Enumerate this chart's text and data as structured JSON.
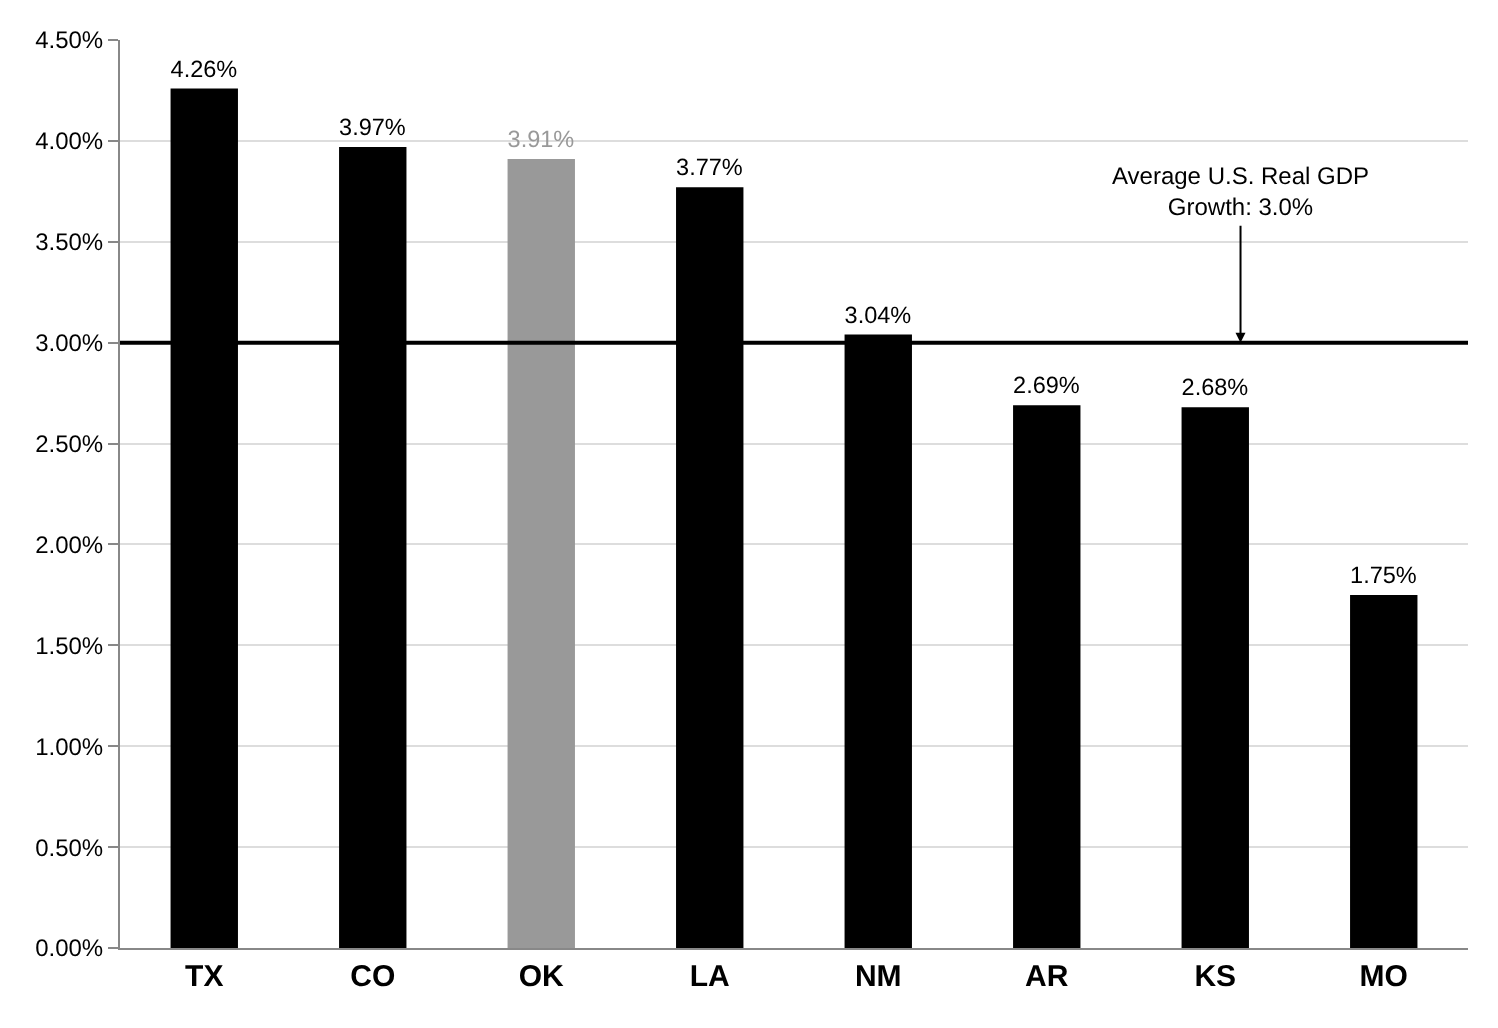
{
  "chart_data": {
    "type": "bar",
    "categories": [
      "TX",
      "CO",
      "OK",
      "LA",
      "NM",
      "AR",
      "KS",
      "MO"
    ],
    "values": [
      4.26,
      3.97,
      3.91,
      3.77,
      3.04,
      2.69,
      2.68,
      1.75
    ],
    "colors": [
      "#000000",
      "#000000",
      "#999999",
      "#000000",
      "#000000",
      "#000000",
      "#000000",
      "#000000"
    ],
    "value_labels": [
      "4.26%",
      "3.97%",
      "3.91%",
      "3.77%",
      "3.04%",
      "2.69%",
      "2.68%",
      "1.75%"
    ],
    "ylim": [
      0,
      4.5
    ],
    "yticks": [
      {
        "value": 0,
        "label": "0.00%"
      },
      {
        "value": 0.5,
        "label": "0.50%"
      },
      {
        "value": 1,
        "label": "1.00%"
      },
      {
        "value": 1.5,
        "label": "1.50%"
      },
      {
        "value": 2,
        "label": "2.00%"
      },
      {
        "value": 2.5,
        "label": "2.50%"
      },
      {
        "value": 3,
        "label": "3.00%"
      },
      {
        "value": 3.5,
        "label": "3.50%"
      },
      {
        "value": 4,
        "label": "4.00%"
      },
      {
        "value": 4.5,
        "label": "4.50%"
      }
    ],
    "ref_lines": [
      {
        "axis": "y",
        "value": 3.0,
        "label": "Average U.S. Real GDP\nGrowth: 3.0%",
        "color": "#000000"
      }
    ],
    "grid": "y"
  }
}
